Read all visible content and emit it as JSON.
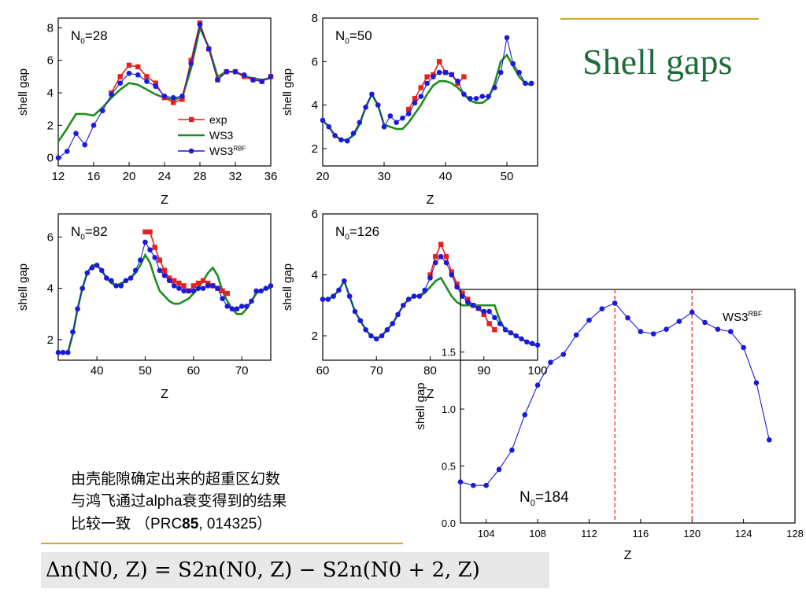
{
  "slide": {
    "title": "Shell gaps",
    "note": {
      "line1": "由壳能隙确定出来的超重区幻数",
      "line2_pre": "与鸿飞通过",
      "line2_latin": "alpha",
      "line2_post": "衰变得到的结果",
      "line3_pre": "比较一致 （",
      "journal": "PRC",
      "volume": "85",
      "article": ", 014325）"
    },
    "formula": {
      "lhs": "Δn(N0, Z)",
      "rhs": "S2n(N0, Z) − S2n(N0 + 2, Z)"
    }
  },
  "colors": {
    "exp": "#e8201c",
    "ws3": "#1e8c1e",
    "ws3rbf": "#1a1adc",
    "accent": "#1f6b3a",
    "gold": "#d4a62a",
    "marker_line": "#e83030"
  },
  "chart_data": [
    {
      "type": "line",
      "panel_label": "N0=28",
      "xlabel": "Z",
      "ylabel": "shell gap",
      "xlim": [
        12,
        36
      ],
      "ylim": [
        -0.5,
        8.6
      ],
      "xticks": [
        12,
        16,
        20,
        24,
        28,
        32,
        36
      ],
      "yticks": [
        0,
        2,
        4,
        6,
        8
      ],
      "legend": {
        "position": "lower-right",
        "entries": [
          "exp",
          "WS3",
          "WS3RBF"
        ]
      },
      "series": [
        {
          "name": "exp",
          "marker": "square",
          "color": "#e8201c",
          "x": [
            18,
            19,
            20,
            21,
            22,
            23,
            24,
            25,
            26,
            27,
            28,
            29,
            30,
            31,
            32,
            33,
            34,
            35,
            36
          ],
          "y": [
            4.0,
            5.0,
            5.7,
            5.6,
            5.0,
            4.6,
            3.7,
            3.4,
            3.6,
            6.0,
            8.3,
            6.7,
            4.8,
            5.3,
            5.3,
            5.0,
            4.8,
            4.7,
            5.0
          ]
        },
        {
          "name": "WS3",
          "marker": "none",
          "color": "#1e8c1e",
          "x": [
            12,
            13,
            14,
            15,
            16,
            17,
            18,
            19,
            20,
            21,
            22,
            23,
            24,
            25,
            26,
            27,
            28,
            29,
            30,
            31,
            32,
            33,
            34,
            35,
            36
          ],
          "y": [
            1.0,
            1.8,
            2.7,
            2.7,
            2.6,
            3.1,
            3.7,
            4.2,
            4.6,
            4.5,
            4.2,
            3.9,
            3.7,
            3.6,
            3.7,
            5.5,
            8.0,
            6.8,
            5.0,
            5.3,
            5.3,
            5.0,
            4.9,
            4.8,
            4.9
          ]
        },
        {
          "name": "WS3RBF",
          "marker": "circle",
          "color": "#1a1adc",
          "x": [
            12,
            13,
            14,
            15,
            16,
            17,
            18,
            19,
            20,
            21,
            22,
            23,
            24,
            25,
            26,
            27,
            28,
            29,
            30,
            31,
            32,
            33,
            34,
            35,
            36
          ],
          "y": [
            0.0,
            0.4,
            1.5,
            0.8,
            2.0,
            2.9,
            3.9,
            4.6,
            5.2,
            5.1,
            4.7,
            4.4,
            3.8,
            3.7,
            3.8,
            5.8,
            8.2,
            6.7,
            4.8,
            5.3,
            5.3,
            5.1,
            4.8,
            4.7,
            5.0
          ]
        }
      ]
    },
    {
      "type": "line",
      "panel_label": "N0=50",
      "xlabel": "Z",
      "ylabel": "shell gap",
      "xlim": [
        20,
        55
      ],
      "ylim": [
        1.2,
        8.0
      ],
      "xticks": [
        20,
        30,
        40,
        50
      ],
      "yticks": [
        2,
        4,
        6,
        8
      ],
      "series": [
        {
          "name": "exp",
          "marker": "square",
          "color": "#e8201c",
          "x": [
            34,
            35,
            36,
            37,
            38,
            39,
            40,
            41,
            42,
            43
          ],
          "y": [
            3.8,
            4.3,
            4.8,
            5.3,
            5.4,
            6.0,
            5.5,
            5.4,
            5.0,
            5.3
          ]
        },
        {
          "name": "WS3",
          "marker": "none",
          "color": "#1e8c1e",
          "x": [
            20,
            21,
            22,
            23,
            24,
            25,
            26,
            27,
            28,
            29,
            30,
            31,
            32,
            33,
            34,
            35,
            36,
            37,
            38,
            39,
            40,
            41,
            42,
            43,
            44,
            45,
            46,
            47,
            48,
            49,
            50,
            51,
            52,
            53,
            54
          ],
          "y": [
            3.3,
            3.0,
            2.6,
            2.4,
            2.4,
            2.6,
            3.1,
            3.9,
            4.5,
            4.0,
            3.1,
            3.0,
            2.9,
            2.9,
            3.2,
            3.6,
            4.0,
            4.5,
            4.9,
            5.1,
            5.1,
            5.0,
            4.8,
            4.5,
            4.2,
            4.1,
            4.1,
            4.3,
            5.0,
            6.0,
            6.3,
            5.8,
            5.3,
            5.0,
            4.9
          ]
        },
        {
          "name": "WS3RBF",
          "marker": "circle",
          "color": "#1a1adc",
          "x": [
            20,
            21,
            22,
            23,
            24,
            25,
            26,
            27,
            28,
            29,
            30,
            31,
            32,
            33,
            34,
            35,
            36,
            37,
            38,
            39,
            40,
            41,
            42,
            43,
            44,
            45,
            46,
            47,
            48,
            49,
            50,
            51,
            52,
            53,
            54
          ],
          "y": [
            3.3,
            3.0,
            2.6,
            2.4,
            2.35,
            2.7,
            3.2,
            3.9,
            4.5,
            4.0,
            3.0,
            3.5,
            3.2,
            3.4,
            3.6,
            4.1,
            4.4,
            5.0,
            5.3,
            5.5,
            5.5,
            5.4,
            5.1,
            4.5,
            4.3,
            4.3,
            4.4,
            4.4,
            4.8,
            5.5,
            7.1,
            5.9,
            5.5,
            5.0,
            5.0
          ]
        }
      ]
    },
    {
      "type": "line",
      "panel_label": "N0=82",
      "xlabel": "Z",
      "ylabel": "shell gap",
      "xlim": [
        32,
        76
      ],
      "ylim": [
        1.2,
        6.9
      ],
      "xticks": [
        40,
        50,
        60,
        70
      ],
      "yticks": [
        2,
        4,
        6
      ],
      "series": [
        {
          "name": "exp",
          "marker": "square",
          "color": "#e8201c",
          "x": [
            50,
            51,
            52,
            53,
            54,
            55,
            56,
            57,
            58,
            59,
            60,
            61,
            62,
            63,
            64,
            65,
            66,
            67
          ],
          "y": [
            6.2,
            6.2,
            5.6,
            5.1,
            4.7,
            4.4,
            4.3,
            4.2,
            4.1,
            3.9,
            4.1,
            4.2,
            4.3,
            4.2,
            4.1,
            4.0,
            3.9,
            3.8
          ]
        },
        {
          "name": "WS3",
          "marker": "none",
          "color": "#1e8c1e",
          "x": [
            32,
            33,
            34,
            35,
            36,
            37,
            38,
            39,
            40,
            41,
            42,
            43,
            44,
            45,
            46,
            47,
            48,
            49,
            50,
            51,
            52,
            53,
            54,
            55,
            56,
            57,
            58,
            59,
            60,
            61,
            62,
            63,
            64,
            65,
            66,
            67,
            68,
            69,
            70,
            71,
            72,
            73,
            74,
            75,
            76
          ],
          "y": [
            1.5,
            1.5,
            1.5,
            2.2,
            3.2,
            4.0,
            4.6,
            4.9,
            4.9,
            4.7,
            4.4,
            4.2,
            4.1,
            4.2,
            4.3,
            4.4,
            4.6,
            4.9,
            5.3,
            5.0,
            4.4,
            3.9,
            3.7,
            3.5,
            3.4,
            3.4,
            3.5,
            3.6,
            3.8,
            4.0,
            4.3,
            4.6,
            4.8,
            4.5,
            3.9,
            3.5,
            3.2,
            3.0,
            3.0,
            3.2,
            3.5,
            3.8,
            3.9,
            4.0,
            4.0
          ]
        },
        {
          "name": "WS3RBF",
          "marker": "circle",
          "color": "#1a1adc",
          "x": [
            32,
            33,
            34,
            35,
            36,
            37,
            38,
            39,
            40,
            41,
            42,
            43,
            44,
            45,
            46,
            47,
            48,
            49,
            50,
            51,
            52,
            53,
            54,
            55,
            56,
            57,
            58,
            59,
            60,
            61,
            62,
            63,
            64,
            65,
            66,
            67,
            68,
            69,
            70,
            71,
            72,
            73,
            74,
            75,
            76
          ],
          "y": [
            1.5,
            1.5,
            1.5,
            2.3,
            3.2,
            4.0,
            4.6,
            4.8,
            4.9,
            4.7,
            4.4,
            4.3,
            4.1,
            4.1,
            4.3,
            4.4,
            4.7,
            5.1,
            5.8,
            5.5,
            5.2,
            4.7,
            4.5,
            4.3,
            4.1,
            4.0,
            3.9,
            3.9,
            3.9,
            4.0,
            4.0,
            4.1,
            4.1,
            4.0,
            3.6,
            3.3,
            3.2,
            3.2,
            3.3,
            3.3,
            3.5,
            3.9,
            3.9,
            4.0,
            4.1
          ]
        }
      ]
    },
    {
      "type": "line",
      "panel_label": "N0=126",
      "xlabel": "Z",
      "ylabel": "shell gap",
      "xlim": [
        60,
        100
      ],
      "ylim": [
        1.2,
        6.0
      ],
      "xticks": [
        60,
        70,
        80,
        90,
        100
      ],
      "yticks": [
        2,
        4,
        6
      ],
      "series": [
        {
          "name": "exp",
          "marker": "square",
          "color": "#e8201c",
          "x": [
            80,
            81,
            82,
            83,
            84,
            85,
            86,
            87,
            88,
            89,
            90,
            91,
            92
          ],
          "y": [
            4.0,
            4.6,
            5.0,
            4.6,
            4.1,
            3.7,
            3.4,
            3.2,
            3.0,
            2.9,
            2.7,
            2.4,
            2.2
          ]
        },
        {
          "name": "WS3",
          "marker": "none",
          "color": "#1e8c1e",
          "x": [
            60,
            61,
            62,
            63,
            64,
            65,
            66,
            67,
            68,
            69,
            70,
            71,
            72,
            73,
            74,
            75,
            76,
            77,
            78,
            79,
            80,
            81,
            82,
            83,
            84,
            85,
            86,
            87,
            88,
            89,
            90,
            91,
            92,
            93,
            94,
            95,
            96,
            97,
            98,
            99,
            100
          ],
          "y": [
            3.2,
            3.2,
            3.3,
            3.5,
            3.8,
            3.3,
            2.8,
            2.5,
            2.2,
            2.0,
            1.9,
            2.0,
            2.2,
            2.4,
            2.7,
            3.0,
            3.2,
            3.3,
            3.3,
            3.4,
            3.6,
            3.8,
            3.9,
            3.6,
            3.3,
            3.1,
            3.0,
            3.0,
            3.0,
            3.0,
            3.0,
            3.0,
            3.0,
            2.5,
            2.2,
            2.1,
            2.0,
            1.9,
            1.8,
            1.7,
            1.7
          ]
        },
        {
          "name": "WS3RBF",
          "marker": "circle",
          "color": "#1a1adc",
          "x": [
            60,
            61,
            62,
            63,
            64,
            65,
            66,
            67,
            68,
            69,
            70,
            71,
            72,
            73,
            74,
            75,
            76,
            77,
            78,
            79,
            80,
            81,
            82,
            83,
            84,
            85,
            86,
            87,
            88,
            89,
            90,
            91,
            92,
            93,
            94,
            95,
            96,
            97,
            98,
            99,
            100
          ],
          "y": [
            3.2,
            3.2,
            3.3,
            3.5,
            3.8,
            3.3,
            2.8,
            2.5,
            2.2,
            2.0,
            1.9,
            2.0,
            2.2,
            2.4,
            2.7,
            3.0,
            3.2,
            3.3,
            3.3,
            3.5,
            3.9,
            4.4,
            4.6,
            4.4,
            4.0,
            3.6,
            3.3,
            3.1,
            3.0,
            2.9,
            2.8,
            2.8,
            2.6,
            2.4,
            2.2,
            2.1,
            2.0,
            1.9,
            1.8,
            1.75,
            1.7
          ]
        }
      ]
    },
    {
      "type": "line",
      "panel_label": "N0=184",
      "series_label": "WS3RBF",
      "xlabel": "Z",
      "ylabel": "shell gap",
      "xlim": [
        102,
        128
      ],
      "ylim": [
        0.0,
        2.05
      ],
      "xticks": [
        104,
        108,
        112,
        116,
        120,
        124,
        128
      ],
      "yticks": [
        0.0,
        0.5,
        1.0,
        1.5
      ],
      "yticklabels": [
        "0.0",
        "0.5",
        "1.0",
        "1.5"
      ],
      "vlines": [
        114,
        120
      ],
      "series": [
        {
          "name": "WS3RBF",
          "marker": "circle",
          "color": "#1a1adc",
          "x": [
            102,
            103,
            104,
            105,
            106,
            107,
            108,
            109,
            110,
            111,
            112,
            113,
            114,
            115,
            116,
            117,
            118,
            119,
            120,
            121,
            122,
            123,
            124,
            125,
            126
          ],
          "y": [
            0.36,
            0.33,
            0.33,
            0.47,
            0.64,
            0.95,
            1.21,
            1.41,
            1.48,
            1.65,
            1.78,
            1.88,
            1.93,
            1.8,
            1.68,
            1.66,
            1.7,
            1.77,
            1.85,
            1.76,
            1.7,
            1.68,
            1.54,
            1.23,
            0.73
          ]
        }
      ]
    }
  ]
}
